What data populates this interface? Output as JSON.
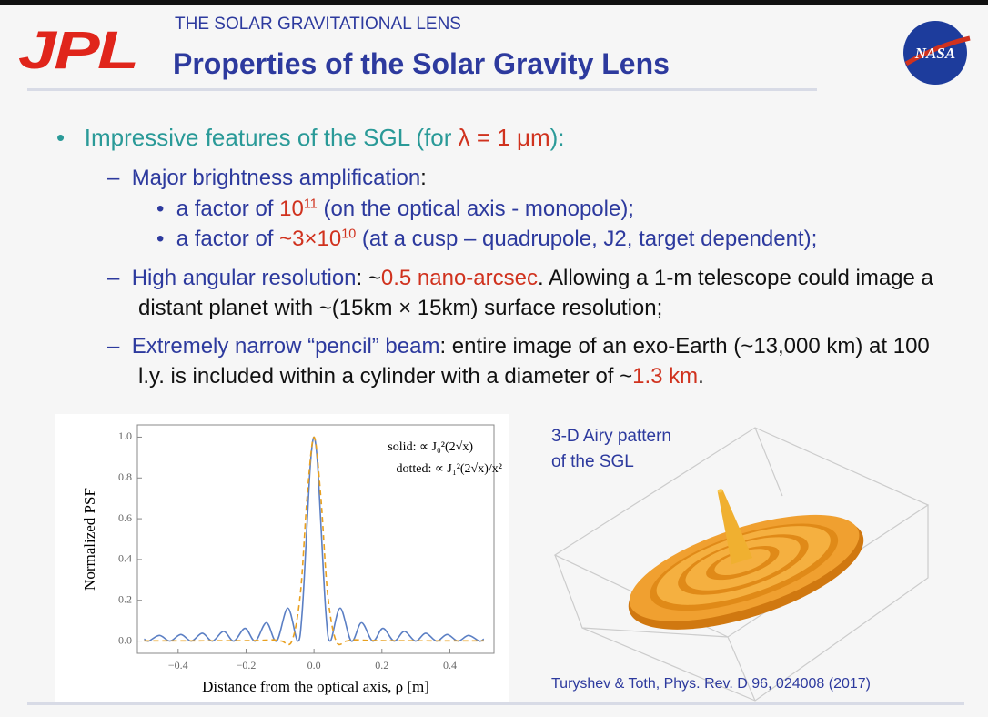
{
  "header": {
    "logo": "JPL",
    "subtitle": "THE SOLAR GRAVITATIONAL LENS",
    "title": "Properties of the Solar Gravity Lens",
    "agency": "NASA"
  },
  "bullets": {
    "main": [
      "Impressive features of the SGL (for ",
      "λ = 1 μm",
      "):"
    ],
    "items": [
      {
        "runs": [
          "Major brightness amplification",
          ":"
        ],
        "subitems": [
          [
            "a factor of ",
            "10",
            "11",
            " (on the optical axis - monopole);"
          ],
          [
            "a factor of ",
            "~3×10",
            "10",
            " (at a cusp – quadrupole, J2, target dependent);"
          ]
        ]
      },
      {
        "runs": [
          "High angular resolution",
          ":  ~",
          "0.5 nano-arcsec",
          ". Allowing a 1-m telescope could image a distant planet with ~(15km × 15km) surface resolution;"
        ]
      },
      {
        "runs": [
          "Extremely narrow “pencil” beam",
          ": entire image of an exo-Earth (~13,000 km) at 100 l.y. is included within a cylinder with a diameter of ~",
          "1.3 km",
          "."
        ]
      }
    ]
  },
  "chart_data": {
    "type": "line",
    "y_label": "Normalized PSF",
    "x_label": "Distance from the optical axis,  ρ [m]",
    "annotations": [
      "solid: ∝ J₀²(2√x)",
      "dotted: ∝ J₁²(2√x)/x²"
    ],
    "xlim": [
      -0.52,
      0.53
    ],
    "ylim": [
      -0.06,
      1.06
    ],
    "xticks": [
      {
        "value": -0.4,
        "label": "−0.4"
      },
      {
        "value": -0.2,
        "label": "−0.2"
      },
      {
        "value": 0,
        "label": "0.0"
      },
      0.2,
      0.4
    ],
    "yticks": [
      {
        "value": 0,
        "label": "0.0"
      },
      0.2,
      0.4,
      0.6,
      0.8,
      {
        "value": 1,
        "label": "1.0"
      }
    ],
    "series": [
      {
        "color": "#5b7fc4",
        "style": "solid",
        "x": [
          -0.5,
          -0.487,
          -0.455,
          -0.424,
          -0.392,
          -0.361,
          -0.329,
          -0.299,
          -0.266,
          -0.236,
          -0.203,
          -0.173,
          -0.14,
          -0.11,
          -0.077,
          -0.048,
          -0.035,
          -0.02,
          -0.01,
          0,
          0.01,
          0.02,
          0.035,
          0.048,
          0.077,
          0.11,
          0.14,
          0.173,
          0.203,
          0.236,
          0.266,
          0.299,
          0.329,
          0.361,
          0.392,
          0.424,
          0.455,
          0.487,
          0.5
        ],
        "values": [
          0.01,
          0,
          0.0279,
          0,
          0.0324,
          0,
          0.0384,
          0,
          0.0477,
          0,
          0.0625,
          0,
          0.09,
          0,
          0.162,
          0,
          0.137,
          0.585,
          0.88,
          1,
          0.88,
          0.585,
          0.137,
          0,
          0.162,
          0,
          0.09,
          0,
          0.0625,
          0,
          0.0477,
          0,
          0.0384,
          0,
          0.0324,
          0,
          0.0279,
          0,
          0.01
        ]
      },
      {
        "color": "#e8a020",
        "style": "dashed",
        "x": [
          -0.5,
          -0.2,
          -0.12,
          -0.095,
          -0.065,
          -0.04,
          -0.02,
          0,
          0.02,
          0.04,
          0.065,
          0.095,
          0.12,
          0.2,
          0.5
        ],
        "values": [
          0.001,
          0.002,
          0.006,
          0,
          0,
          0.233,
          0.71,
          1,
          0.71,
          0.233,
          0,
          0,
          0.006,
          0.002,
          0.001
        ]
      }
    ]
  },
  "figure": {
    "caption": [
      "3-D Airy pattern",
      "of the SGL"
    ],
    "citation": "Turyshev & Toth, Phys. Rev. D 96, 024008 (2017)"
  }
}
